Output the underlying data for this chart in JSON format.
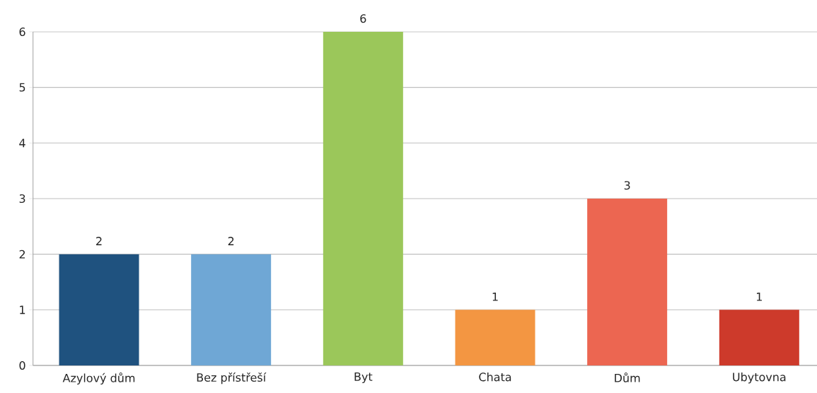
{
  "chart_data": {
    "type": "bar",
    "categories": [
      "Azylový dům",
      "Bez přístřeší",
      "Byt",
      "Chata",
      "Dům",
      "Ubytovna"
    ],
    "values": [
      2,
      2,
      6,
      1,
      3,
      1
    ],
    "colors": [
      "#1f527f",
      "#6fa7d5",
      "#9bc75a",
      "#f39642",
      "#ec6651",
      "#cd3a2b"
    ],
    "ylim": [
      0,
      6
    ],
    "yticks": [
      0,
      1,
      2,
      3,
      4,
      5,
      6
    ],
    "grid": "y",
    "data_labels": true
  }
}
